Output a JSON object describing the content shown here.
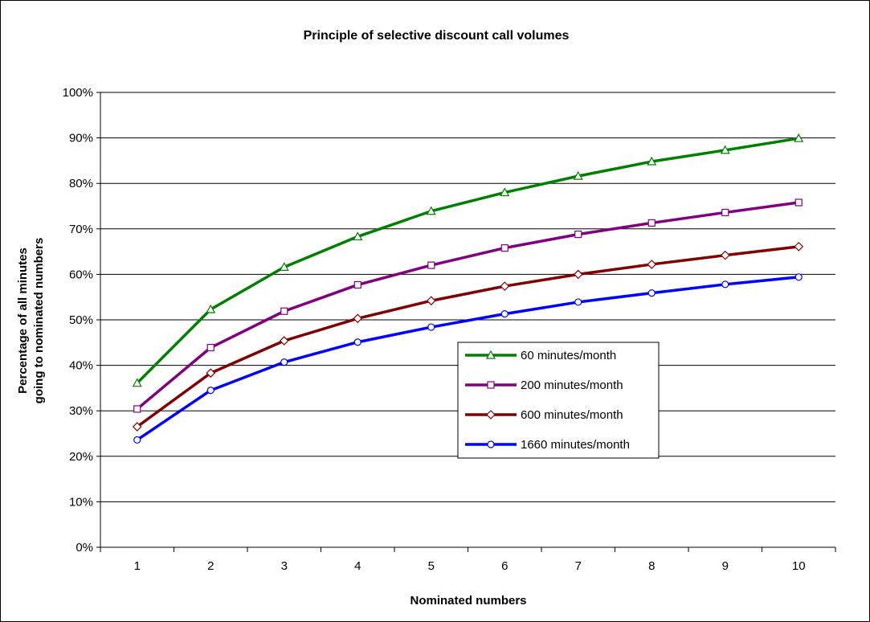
{
  "chart_data": {
    "type": "line",
    "title": "Principle of selective discount call volumes",
    "xlabel": "Nominated numbers",
    "ylabel_lines": [
      "Percentage of all minutes",
      "going to nominated numbers"
    ],
    "x": [
      1,
      2,
      3,
      4,
      5,
      6,
      7,
      8,
      9,
      10
    ],
    "xlim": [
      0.5,
      10.5
    ],
    "ylim": [
      0,
      1
    ],
    "y_ticks": [
      0,
      0.1,
      0.2,
      0.3,
      0.4,
      0.5,
      0.6,
      0.7,
      0.8,
      0.9,
      1.0
    ],
    "y_tick_labels": [
      "0%",
      "10%",
      "20%",
      "30%",
      "40%",
      "50%",
      "60%",
      "70%",
      "80%",
      "90%",
      "100%"
    ],
    "x_tick_labels": [
      "1",
      "2",
      "3",
      "4",
      "5",
      "6",
      "7",
      "8",
      "9",
      "10"
    ],
    "grid": "horizontal",
    "legend_position": "center-right",
    "series": [
      {
        "name": "60 minutes/month",
        "color": "#008000",
        "marker": "triangle",
        "values": [
          0.361,
          0.523,
          0.616,
          0.683,
          0.739,
          0.78,
          0.816,
          0.848,
          0.873,
          0.899
        ]
      },
      {
        "name": "200 minutes/month",
        "color": "#800080",
        "marker": "square",
        "values": [
          0.304,
          0.439,
          0.519,
          0.577,
          0.62,
          0.658,
          0.688,
          0.713,
          0.736,
          0.758
        ]
      },
      {
        "name": "600 minutes/month",
        "color": "#800000",
        "marker": "diamond",
        "values": [
          0.265,
          0.383,
          0.454,
          0.503,
          0.542,
          0.574,
          0.6,
          0.622,
          0.642,
          0.661
        ]
      },
      {
        "name": "1660 minutes/month",
        "color": "#0000ff",
        "marker": "circle",
        "values": [
          0.236,
          0.345,
          0.407,
          0.451,
          0.484,
          0.513,
          0.539,
          0.559,
          0.578,
          0.594
        ]
      }
    ]
  }
}
